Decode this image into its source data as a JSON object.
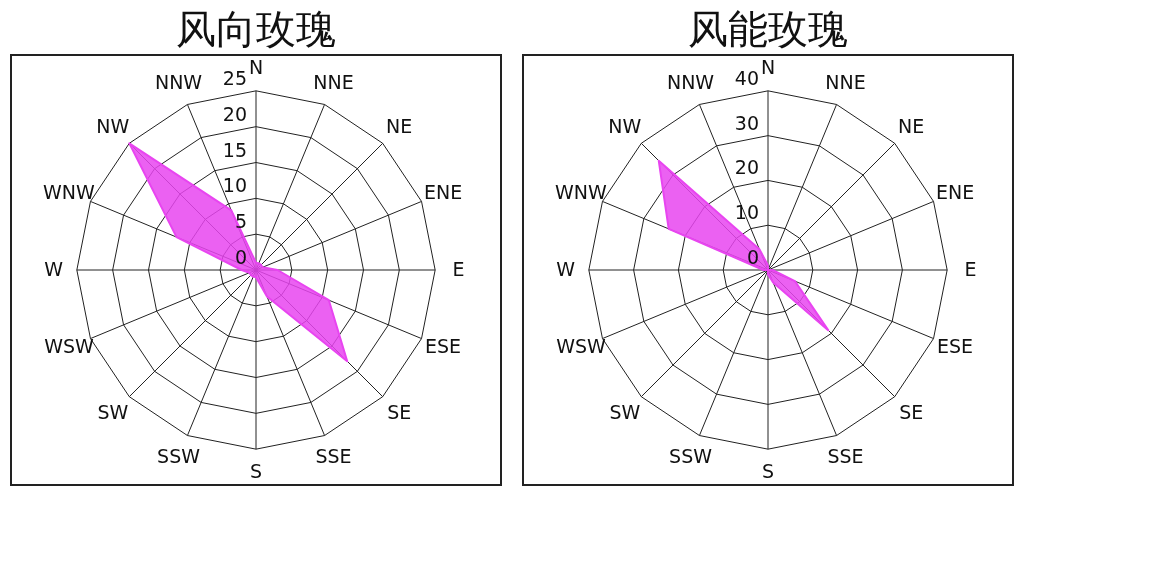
{
  "chart_data": [
    {
      "type": "radar",
      "title": "风向玫瑰",
      "categories": [
        "N",
        "NNE",
        "NE",
        "ENE",
        "E",
        "ESE",
        "SE",
        "SSE",
        "S",
        "SSW",
        "SW",
        "WSW",
        "W",
        "WNW",
        "NW",
        "NNW"
      ],
      "ylim": [
        0,
        25
      ],
      "yticks": [
        0,
        5,
        10,
        15,
        20,
        25
      ],
      "grid": true,
      "series": [
        {
          "color": "#e845f0",
          "values": [
            1,
            1,
            1,
            1,
            3,
            11,
            18,
            4,
            1,
            1,
            1,
            1,
            2,
            12,
            25,
            9
          ]
        }
      ]
    },
    {
      "type": "radar",
      "title": "风能玫瑰",
      "categories": [
        "N",
        "NNE",
        "NE",
        "ENE",
        "E",
        "ESE",
        "SE",
        "SSE",
        "S",
        "SSW",
        "SW",
        "WSW",
        "W",
        "WNW",
        "NW",
        "NNW"
      ],
      "ylim": [
        0,
        40
      ],
      "yticks": [
        0,
        10,
        20,
        30,
        40
      ],
      "grid": true,
      "series": [
        {
          "color": "#e845f0",
          "values": [
            1,
            0,
            0,
            0,
            1,
            6.5,
            19,
            3,
            1,
            0,
            0,
            0,
            1,
            24,
            34.5,
            5
          ]
        }
      ]
    }
  ]
}
